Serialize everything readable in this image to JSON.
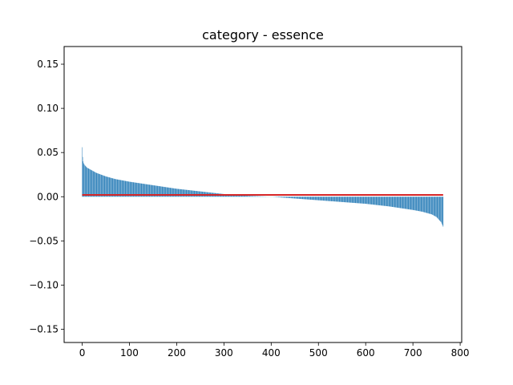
{
  "chart_data": {
    "type": "bar",
    "title": "category - essence",
    "xlabel": "",
    "ylabel": "",
    "xlim": [
      -38.25,
      803.25
    ],
    "ylim": [
      -0.165,
      0.17
    ],
    "xticks": [
      0,
      100,
      200,
      300,
      400,
      500,
      600,
      700,
      800
    ],
    "yticks": [
      -0.15,
      -0.1,
      -0.05,
      0.0,
      0.05,
      0.1,
      0.15
    ],
    "xtick_labels": [
      "0",
      "100",
      "200",
      "300",
      "400",
      "500",
      "600",
      "700",
      "800"
    ],
    "ytick_labels": [
      "−0.15",
      "−0.10",
      "−0.05",
      "0.00",
      "0.05",
      "0.10",
      "0.15"
    ],
    "grid": false,
    "n_bars": 765,
    "bar_color": "#1f77b4",
    "sorted_values_profile": {
      "x": [
        0,
        1,
        2,
        3,
        5,
        10,
        20,
        30,
        50,
        70,
        100,
        150,
        200,
        250,
        300,
        350,
        400,
        450,
        500,
        550,
        600,
        650,
        700,
        720,
        740,
        750,
        755,
        760,
        764
      ],
      "y": [
        0.056,
        0.045,
        0.04,
        0.038,
        0.036,
        0.033,
        0.03,
        0.027,
        0.023,
        0.02,
        0.017,
        0.013,
        0.009,
        0.006,
        0.003,
        0.001,
        0.0,
        -0.002,
        -0.004,
        -0.006,
        -0.008,
        -0.011,
        -0.015,
        -0.017,
        -0.02,
        -0.023,
        -0.026,
        -0.029,
        -0.034
      ]
    },
    "reference_line": {
      "y": 0.002,
      "x_range": [
        0,
        764
      ],
      "color": "#d62728"
    }
  }
}
